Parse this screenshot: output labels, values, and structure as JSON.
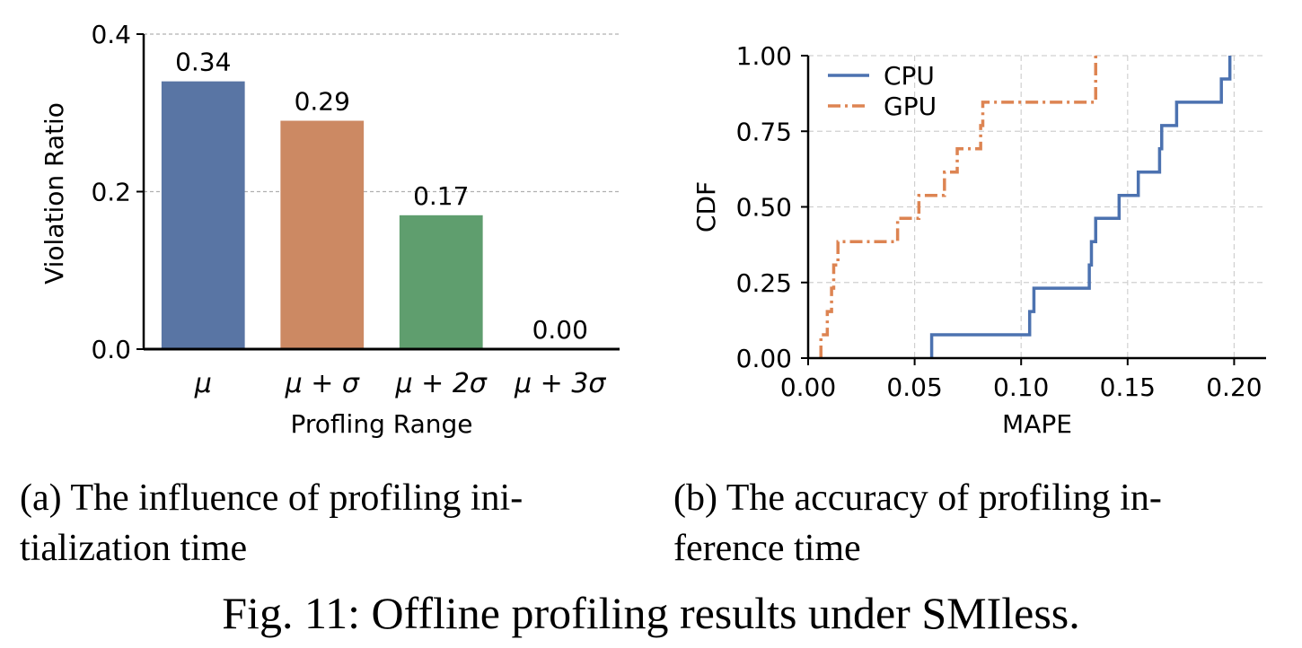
{
  "chart_data": [
    {
      "type": "bar",
      "xlabel": "Profling Range",
      "ylabel": "Violation Ratio",
      "categories": [
        "μ",
        "μ + σ",
        "μ + 2σ",
        "μ + 3σ"
      ],
      "values": [
        0.34,
        0.29,
        0.17,
        0.0
      ],
      "value_labels": [
        "0.34",
        "0.29",
        "0.17",
        "0.00"
      ],
      "colors": [
        "#5975a4",
        "#cc8963",
        "#5f9e6e",
        "#b55d60"
      ],
      "ylim": [
        0,
        0.4
      ],
      "yticks": [
        0.0,
        0.2,
        0.4
      ],
      "ytick_labels": [
        "0.0",
        "0.2",
        "0.4"
      ],
      "grid": "y-dashed"
    },
    {
      "type": "line",
      "step": true,
      "xlabel": "MAPE",
      "ylabel": "CDF",
      "xlim": [
        0,
        0.215
      ],
      "ylim": [
        0,
        1.0
      ],
      "xticks": [
        0.0,
        0.05,
        0.1,
        0.15,
        0.2
      ],
      "xtick_labels": [
        "0.00",
        "0.05",
        "0.10",
        "0.15",
        "0.20"
      ],
      "yticks": [
        0.0,
        0.25,
        0.5,
        0.75,
        1.0
      ],
      "ytick_labels": [
        "0.00",
        "0.25",
        "0.50",
        "0.75",
        "1.00"
      ],
      "grid": "both-dashed",
      "legend_position": "top-left",
      "series": [
        {
          "name": "CPU",
          "color": "#4c72b0",
          "dash": "solid",
          "x": [
            0.058,
            0.104,
            0.106,
            0.132,
            0.133,
            0.135,
            0.146,
            0.155,
            0.165,
            0.166,
            0.173,
            0.194,
            0.198
          ],
          "y": [
            0.077,
            0.154,
            0.231,
            0.308,
            0.385,
            0.462,
            0.538,
            0.615,
            0.692,
            0.769,
            0.846,
            0.923,
            1.0
          ]
        },
        {
          "name": "GPU",
          "color": "#dd8452",
          "dash": "dashdot",
          "x": [
            0.006,
            0.009,
            0.011,
            0.012,
            0.014,
            0.042,
            0.052,
            0.064,
            0.07,
            0.081,
            0.082,
            0.084,
            0.135
          ],
          "y": [
            0.077,
            0.154,
            0.231,
            0.308,
            0.385,
            0.462,
            0.538,
            0.615,
            0.692,
            0.769,
            0.846,
            0.846,
            1.0
          ]
        }
      ]
    }
  ],
  "captions": {
    "a_line1": "(a) The influence of profiling ini-",
    "a_line2": "tialization time",
    "b_line1": "(b) The accuracy of profiling in-",
    "b_line2": "ference time",
    "figure": "Fig. 11: Offline profiling results under SMIless."
  }
}
